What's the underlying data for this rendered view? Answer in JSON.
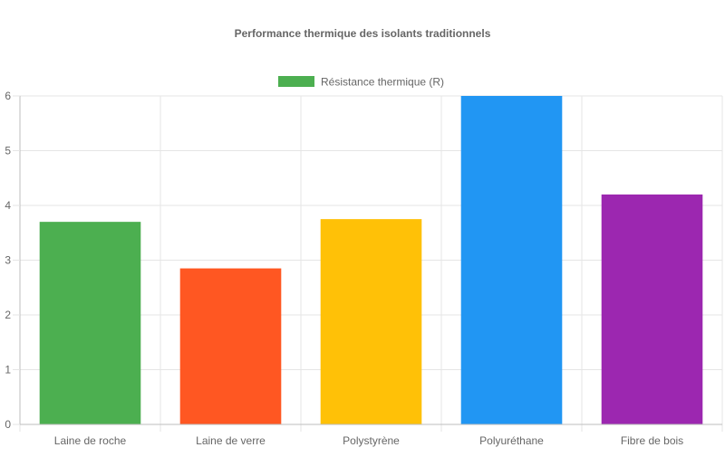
{
  "chart_data": {
    "type": "bar",
    "title": "Performance thermique des isolants traditionnels",
    "legend": {
      "position": "top",
      "entries": [
        {
          "label": "Résistance thermique (R)",
          "color": "#4CAF50"
        }
      ]
    },
    "categories": [
      "Laine de roche",
      "Laine de verre",
      "Polystyrène",
      "Polyuréthane",
      "Fibre de bois"
    ],
    "series": [
      {
        "name": "Résistance thermique (R)",
        "values": [
          3.7,
          2.85,
          3.75,
          6.0,
          4.2
        ],
        "colors": [
          "#4CAF50",
          "#FF5722",
          "#FFC107",
          "#2196F3",
          "#9C27B0"
        ]
      }
    ],
    "ylim": [
      0,
      6
    ],
    "yticks": [
      0,
      1,
      2,
      3,
      4,
      5,
      6
    ],
    "grid": true,
    "xlabel": "",
    "ylabel": ""
  }
}
